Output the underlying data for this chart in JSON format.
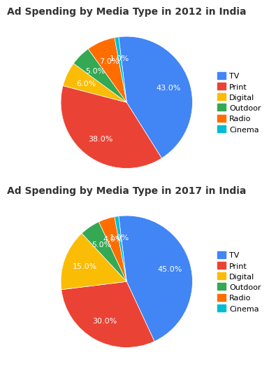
{
  "chart1": {
    "title": "Ad Spending by Media Type in 2012 in India",
    "labels": [
      "TV",
      "Print",
      "Digital",
      "Outdoor",
      "Radio",
      "Cinema"
    ],
    "values": [
      43.0,
      38.0,
      6.0,
      5.0,
      7.0,
      1.0
    ],
    "colors": [
      "#4285F4",
      "#EA4335",
      "#FBBC05",
      "#34A853",
      "#FF6D00",
      "#00BCD4"
    ],
    "startangle": 97
  },
  "chart2": {
    "title": "Ad Spending by Media Type in 2017 in India",
    "labels": [
      "TV",
      "Print",
      "Digital",
      "Outdoor",
      "Radio",
      "Cinema"
    ],
    "values": [
      45.0,
      30.0,
      15.0,
      5.0,
      4.0,
      1.0
    ],
    "colors": [
      "#4285F4",
      "#EA4335",
      "#FBBC05",
      "#34A853",
      "#FF6D00",
      "#00BCD4"
    ],
    "startangle": 97
  },
  "legend_labels": [
    "TV",
    "Print",
    "Digital",
    "Outdoor",
    "Radio",
    "Cinema"
  ],
  "legend_colors": [
    "#4285F4",
    "#EA4335",
    "#FBBC05",
    "#34A853",
    "#FF6D00",
    "#00BCD4"
  ],
  "title_fontsize": 10,
  "label_fontsize": 8,
  "legend_fontsize": 8,
  "bg_color": "#ffffff"
}
